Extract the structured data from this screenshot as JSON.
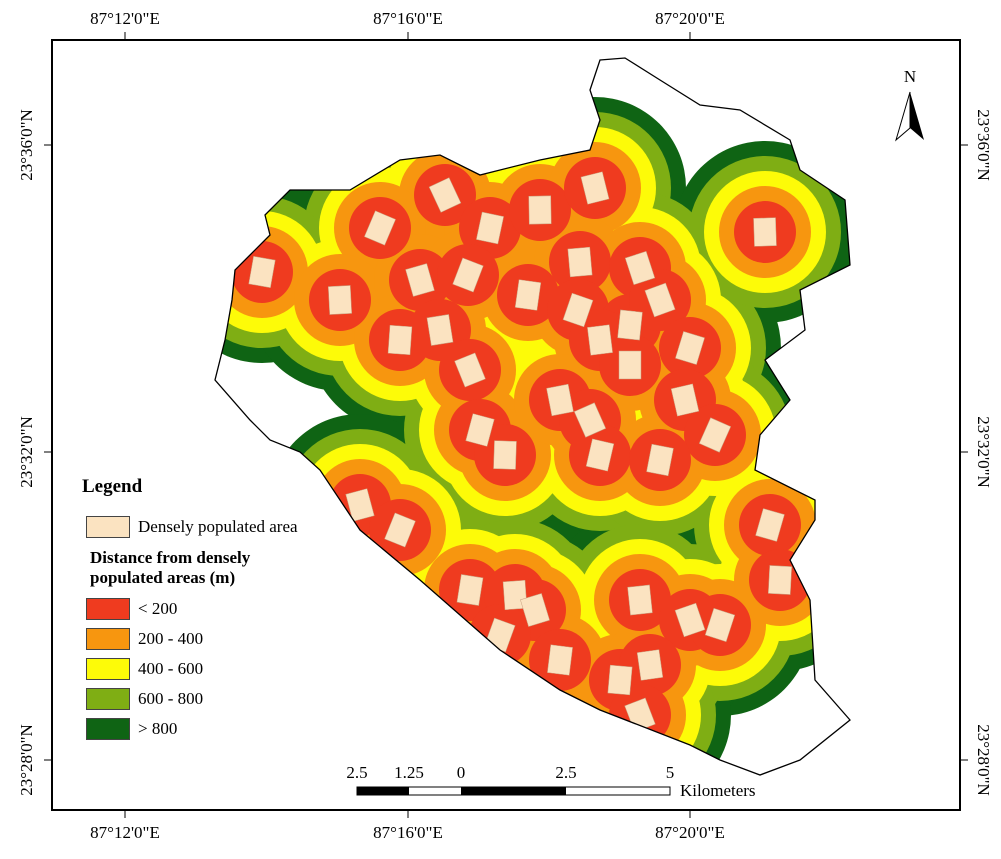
{
  "graticule": {
    "top": [
      "87°12'0\"E",
      "87°16'0\"E",
      "87°20'0\"E"
    ],
    "bottom": [
      "87°12'0\"E",
      "87°16'0\"E",
      "87°20'0\"E"
    ],
    "left": [
      "23°36'0\"N",
      "23°32'0\"N",
      "23°28'0\"N"
    ],
    "right": [
      "23°36'0\"N",
      "23°32'0\"N",
      "23°28'0\"N"
    ]
  },
  "north_arrow": "N",
  "legend": {
    "title": "Legend",
    "area": {
      "label": "Densely populated area",
      "color": "#fbe3c1"
    },
    "distance_title": "Distance from densely populated areas (m)",
    "classes": [
      {
        "label": "< 200",
        "color": "#ef3b1f"
      },
      {
        "label": "200 - 400",
        "color": "#f7960f"
      },
      {
        "label": "400 - 600",
        "color": "#fdfb08"
      },
      {
        "label": "600 - 800",
        "color": "#7fae14"
      },
      {
        "label": "> 800",
        "color": "#0f6414"
      }
    ]
  },
  "scale_bar": {
    "ticks": [
      "2.5",
      "1.25",
      "0",
      "2.5",
      "5"
    ],
    "unit": "Kilometers"
  }
}
